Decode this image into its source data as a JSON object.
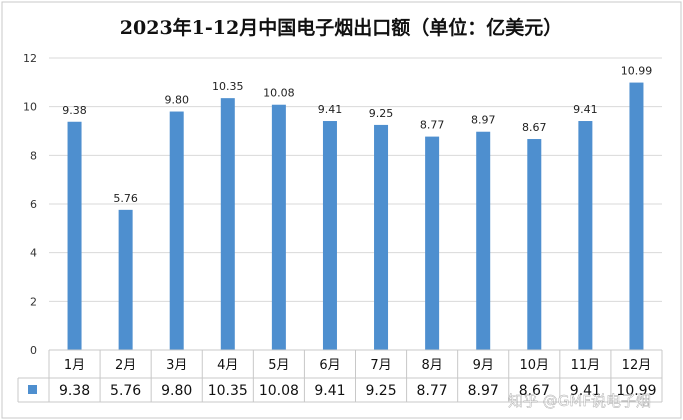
{
  "chart_data": {
    "type": "bar",
    "title": "2023年1-12月中国电子烟出口额（单位：亿美元）",
    "categories": [
      "1月",
      "2月",
      "3月",
      "4月",
      "5月",
      "6月",
      "7月",
      "8月",
      "9月",
      "10月",
      "11月",
      "12月"
    ],
    "values": [
      9.38,
      5.76,
      9.8,
      10.35,
      10.08,
      9.41,
      9.25,
      8.77,
      8.97,
      8.67,
      9.41,
      10.99
    ],
    "value_labels": [
      "9.38",
      "5.76",
      "9.80",
      "10.35",
      "10.08",
      "9.41",
      "9.25",
      "8.77",
      "8.97",
      "8.67",
      "9.41",
      "10.99"
    ],
    "ylim": [
      0,
      12
    ],
    "yticks": [
      "0",
      "2",
      "4",
      "6",
      "8",
      "10",
      "12"
    ],
    "grid": true,
    "legend": "none",
    "data_table": true,
    "bar_color": "#4e8fcf"
  },
  "watermark": "知乎 @GMF说电子烟"
}
